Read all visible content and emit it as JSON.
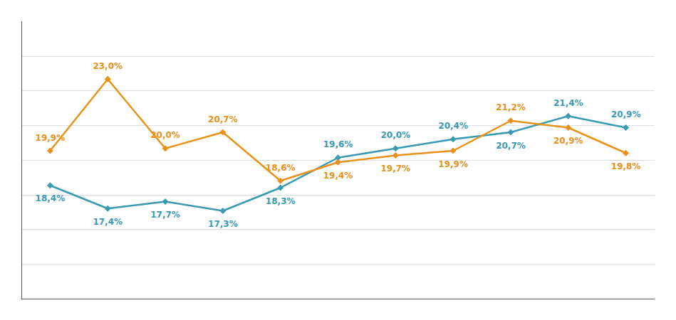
{
  "chart_data": {
    "type": "line",
    "categories": [
      null,
      null,
      null,
      null,
      null,
      null,
      null,
      null,
      null,
      null,
      null
    ],
    "series": [
      {
        "color": "#3A9AB2",
        "values": [
          18.4,
          17.4,
          17.7,
          17.3,
          18.3,
          19.6,
          20.0,
          20.4,
          20.7,
          21.4,
          20.9
        ],
        "value_labels": [
          "18,4%",
          "17,4%",
          "17,7%",
          "17,3%",
          "18,3%",
          "19,6%",
          "20,0%",
          "20,4%",
          "20,7%",
          "21,4%",
          "20,9%"
        ]
      },
      {
        "color": "#E8921A",
        "values": [
          19.9,
          23.0,
          20.0,
          20.7,
          18.6,
          19.4,
          19.7,
          19.9,
          21.2,
          20.9,
          19.8
        ],
        "value_labels": [
          "19,9%",
          "23,0%",
          "20,0%",
          "20,7%",
          "18,6%",
          "19,4%",
          "19,7%",
          "19,9%",
          "21,2%",
          "20,9%",
          "19,8%"
        ]
      }
    ],
    "ylim": [
      13.5,
      25.5
    ],
    "yticks": [
      15,
      16.5,
      18,
      19.5,
      21,
      22.5,
      24
    ],
    "grid": true,
    "tick_labels": false,
    "data_labels": true,
    "marker": "diamond"
  }
}
